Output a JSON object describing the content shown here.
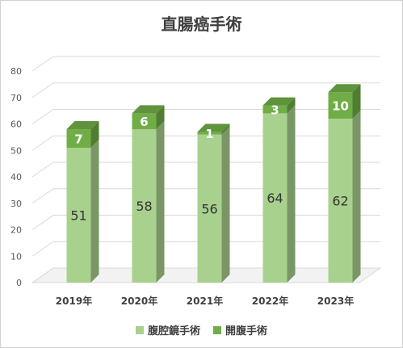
{
  "chart_data": {
    "type": "bar",
    "stacked": true,
    "title": "直腸癌手術",
    "categories": [
      "2019年",
      "2020年",
      "2021年",
      "2022年",
      "2023年"
    ],
    "series": [
      {
        "name": "腹腔鏡手術",
        "values": [
          51,
          58,
          56,
          64,
          62
        ],
        "color": "#a9d18e"
      },
      {
        "name": "開腹手術",
        "values": [
          7,
          6,
          1,
          3,
          10
        ],
        "color": "#70ad47"
      }
    ],
    "ylim": [
      0,
      80
    ],
    "yticks": [
      0,
      10,
      20,
      30,
      40,
      50,
      60,
      70,
      80
    ],
    "grid": true,
    "legend_position": "bottom"
  }
}
